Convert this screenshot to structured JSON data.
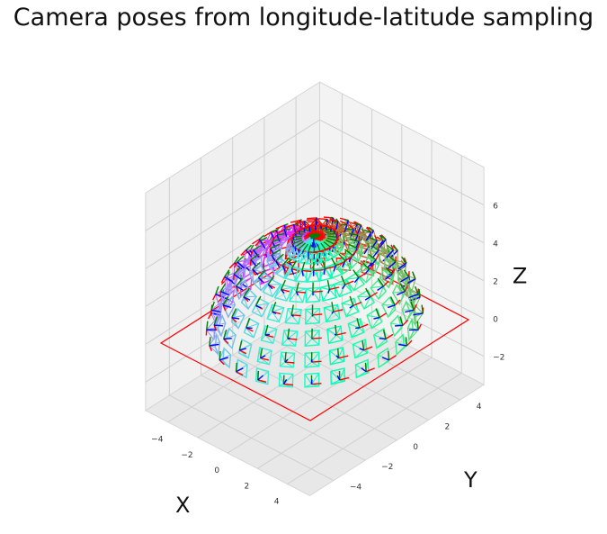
{
  "chart_data": {
    "type": "scatter",
    "subtype": "3d-camera-poses",
    "title": "Camera poses from longitude-latitude sampling",
    "xlabel": "X",
    "ylabel": "Y",
    "zlabel": "Z",
    "xlim": [
      -5.5,
      5.5
    ],
    "ylim": [
      -5.5,
      5.5
    ],
    "zlim": [
      -3.5,
      8
    ],
    "x_ticks": [
      "−4",
      "−2",
      "0",
      "2",
      "4"
    ],
    "y_ticks": [
      "−4",
      "−2",
      "0",
      "2",
      "4"
    ],
    "z_ticks": [
      "−2",
      "0",
      "2",
      "4",
      "6"
    ],
    "grid": true,
    "colormap": "rainbow",
    "radius": 5,
    "longitude_samples": 24,
    "latitude_samples_deg": [
      6,
      18,
      30,
      42,
      54,
      66,
      78,
      88
    ],
    "ground_plane": {
      "extent": 5,
      "z": 0,
      "color": "#ff0000"
    },
    "axis_colors": {
      "x": "#ff0000",
      "y": "#008000",
      "z": "#0000ff"
    }
  }
}
